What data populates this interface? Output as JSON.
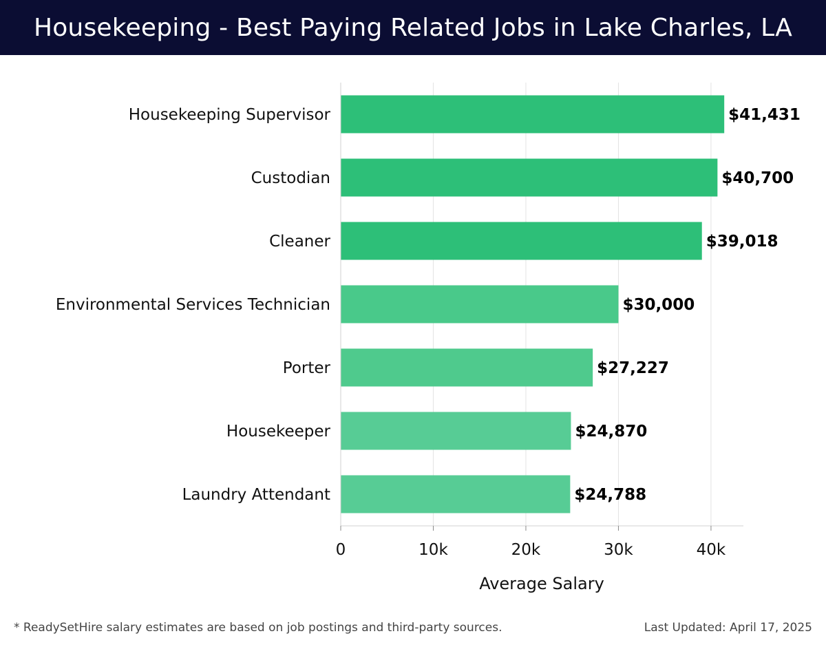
{
  "header": {
    "title": "Housekeeping - Best Paying Related Jobs in Lake Charles, LA"
  },
  "chart_data": {
    "type": "bar",
    "orientation": "horizontal",
    "title": "Housekeeping - Best Paying Related Jobs in Lake Charles, LA",
    "xlabel": "Average Salary",
    "ylabel": "",
    "xlim": [
      0,
      43500
    ],
    "xticks": [
      0,
      10000,
      20000,
      30000,
      40000
    ],
    "xtick_labels": [
      "0",
      "10k",
      "20k",
      "30k",
      "40k"
    ],
    "grid": "vertical",
    "categories": [
      "Housekeeping Supervisor",
      "Custodian",
      "Cleaner",
      "Environmental Services Technician",
      "Porter",
      "Housekeeper",
      "Laundry Attendant"
    ],
    "values": [
      41431,
      40700,
      39018,
      30000,
      27227,
      24870,
      24788
    ],
    "value_labels": [
      "$41,431",
      "$40,700",
      "$39,018",
      "$30,000",
      "$27,227",
      "$24,870",
      "$24,788"
    ],
    "colors": [
      "#2dbf78",
      "#2dbf78",
      "#2dbf78",
      "#49c98a",
      "#4fca8d",
      "#57cc95",
      "#57cc95"
    ]
  },
  "footer": {
    "note": "* ReadySetHire salary estimates are based on job postings and third-party sources.",
    "updated": "Last Updated: April 17, 2025"
  }
}
